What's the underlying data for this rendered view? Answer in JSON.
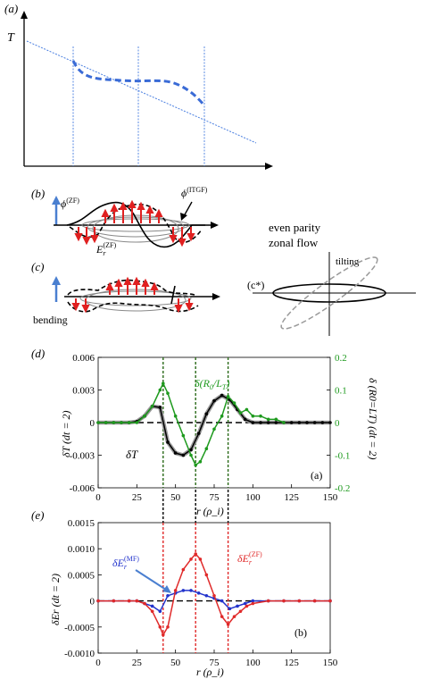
{
  "panels": {
    "a": {
      "label": "(a)",
      "axis_label": "T"
    },
    "b": {
      "label": "(b)",
      "phi_zf": "ϕ",
      "phi_zf_sup": "(ZF)",
      "phi_itgf": "ϕ",
      "phi_itgf_sup": "(ITGF)",
      "er": "E",
      "er_sub": "r",
      "er_sup": "(ZF)"
    },
    "c": {
      "label": "(c)",
      "bending": "bending"
    },
    "cstar": {
      "label": "(c*)",
      "tilting": "tilting",
      "title_line1": "even parity",
      "title_line2": "zonal flow"
    },
    "d": {
      "label": "(d)",
      "panel_tag": "(a)",
      "series_black": "δT",
      "series_green": "δ(R",
      "series_green_sub1": "0",
      "series_green_mid": "/L",
      "series_green_sub2": "T",
      "series_green_end": ")"
    },
    "e": {
      "label": "(e)",
      "panel_tag": "(b)",
      "series_blue": "δE",
      "series_blue_sub": "r",
      "series_blue_sup": "(MF)",
      "series_red": "δE",
      "series_red_sub": "r",
      "series_red_sup": "(ZF)"
    }
  },
  "colors": {
    "blue_dashed": "#3a6bd6",
    "guide_blue": "#4a7fe0",
    "arrow_red": "#e02020",
    "green": "#1e9a1e",
    "red": "#e02a2a",
    "blue": "#2233cc",
    "dark_green": "#2a6a18",
    "arrow_blue": "#4a7fd0"
  },
  "chart_data": [
    {
      "type": "line",
      "panel": "d",
      "xlabel": "r (ρ_i)",
      "ylabel": "δT (dt = 2)",
      "y2label": "δ (R0=LT) (dt = 2)",
      "xlim": [
        0,
        150
      ],
      "ylim": [
        -0.006,
        0.006
      ],
      "y2lim": [
        -0.2,
        0.2
      ],
      "x_ticks": [
        "0",
        "25",
        "50",
        "75",
        "100",
        "125",
        "150"
      ],
      "y_ticks": [
        "0.006",
        "0.003",
        "0",
        "-0.003",
        "-0.006"
      ],
      "y2_ticks": [
        "0.2",
        "0.1",
        "0",
        "-0.1",
        "-0.2"
      ],
      "vlines": [
        42,
        63,
        84
      ],
      "series": [
        {
          "name": "δT",
          "axis": "left",
          "color": "#000000",
          "x": [
            0,
            5,
            10,
            15,
            20,
            25,
            30,
            35,
            40,
            45,
            50,
            55,
            60,
            65,
            70,
            75,
            80,
            85,
            90,
            95,
            100,
            105,
            110,
            115,
            120,
            125,
            130,
            135,
            140,
            145,
            150
          ],
          "y": [
            0,
            0,
            0,
            0,
            0,
            0.0001,
            0.0006,
            0.0015,
            0.0014,
            -0.0018,
            -0.0028,
            -0.003,
            -0.0025,
            -0.001,
            0.0008,
            0.002,
            0.0025,
            0.0021,
            0.0012,
            0.0003,
            0,
            0,
            0,
            0,
            0,
            0,
            0,
            0,
            0,
            0,
            0
          ]
        },
        {
          "name": "δ(R0/LT)",
          "axis": "right",
          "color": "#1e9a1e",
          "x": [
            0,
            5,
            10,
            15,
            20,
            25,
            30,
            35,
            40,
            42,
            45,
            50,
            55,
            60,
            63,
            66,
            70,
            75,
            80,
            84,
            88,
            92,
            96,
            100,
            105,
            110,
            115,
            120
          ],
          "y": [
            0,
            0,
            0,
            0,
            0,
            0,
            0.02,
            0.05,
            0.1,
            0.12,
            0.09,
            0.02,
            -0.04,
            -0.1,
            -0.13,
            -0.12,
            -0.08,
            -0.02,
            0.02,
            0.08,
            0.06,
            0.03,
            0.04,
            0.02,
            0.02,
            0.01,
            0.01,
            0
          ]
        }
      ]
    },
    {
      "type": "line",
      "panel": "e",
      "xlabel": "r (ρ_i)",
      "ylabel": "δEr (dt = 2)",
      "xlim": [
        0,
        150
      ],
      "ylim": [
        -0.001,
        0.0015
      ],
      "x_ticks": [
        "0",
        "25",
        "50",
        "75",
        "100",
        "125",
        "150"
      ],
      "y_ticks": [
        "0.0015",
        "0.0010",
        "0.0005",
        "0",
        "-0.0005",
        "-0.0010"
      ],
      "vlines": [
        42,
        63,
        84
      ],
      "series": [
        {
          "name": "δEr(MF)",
          "color": "#2233cc",
          "x": [
            0,
            10,
            20,
            25,
            30,
            35,
            40,
            45,
            50,
            55,
            60,
            65,
            70,
            75,
            80,
            85,
            90,
            95,
            100,
            110,
            120,
            130,
            140,
            150
          ],
          "y": [
            0,
            0,
            0,
            0,
            -5e-05,
            -0.0001,
            -0.0002,
            0.0001,
            0.00015,
            0.0002,
            0.0002,
            0.00015,
            0.0001,
            5e-05,
            0,
            -0.00015,
            -0.0001,
            -5e-05,
            0,
            0,
            0,
            0,
            0,
            0
          ]
        },
        {
          "name": "δEr(ZF)",
          "color": "#e02a2a",
          "x": [
            0,
            10,
            20,
            25,
            30,
            35,
            40,
            42,
            45,
            50,
            55,
            60,
            63,
            66,
            70,
            75,
            80,
            84,
            88,
            92,
            96,
            100,
            110,
            120,
            130,
            140,
            150
          ],
          "y": [
            0,
            0,
            0,
            0,
            -5e-05,
            -0.0002,
            -0.0005,
            -0.00065,
            -0.0005,
            0.0002,
            0.0006,
            0.0008,
            0.0009,
            0.0008,
            0.0005,
            0.0001,
            -0.0003,
            -0.00045,
            -0.0003,
            -0.0002,
            -0.0001,
            -5e-05,
            0,
            0,
            0,
            0,
            0
          ]
        }
      ]
    }
  ]
}
